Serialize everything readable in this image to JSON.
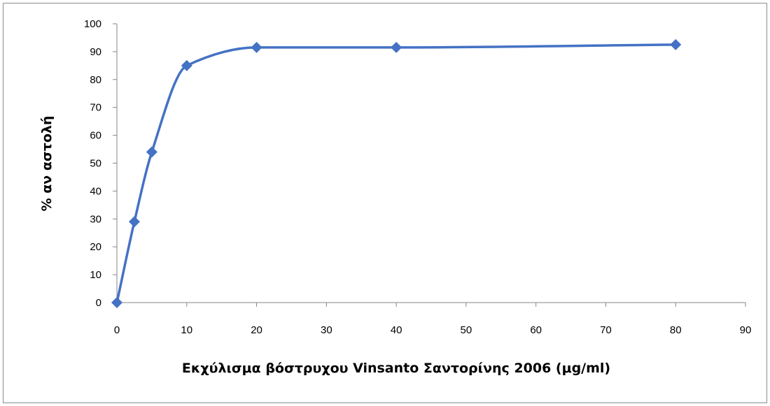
{
  "chart_data": {
    "type": "line",
    "title": "",
    "xlabel": "Εκχύλισμα βόστρυχου Vinsanto Σαντορίνης 2006 (μg/ml)",
    "ylabel": "% αν αστολή",
    "xlim": [
      0,
      90
    ],
    "ylim": [
      0,
      100
    ],
    "x_ticks": [
      "0",
      "10",
      "20",
      "30",
      "40",
      "50",
      "60",
      "70",
      "80",
      "90"
    ],
    "y_ticks": [
      "0",
      "10",
      "20",
      "30",
      "40",
      "50",
      "60",
      "70",
      "80",
      "90",
      "100"
    ],
    "grid": false,
    "legend": "none",
    "smooth": true,
    "marker": "diamond",
    "color": "#4472c4",
    "series": [
      {
        "x": [
          0,
          2.5,
          5,
          10,
          20,
          40,
          80
        ],
        "y": [
          0,
          29,
          54,
          85,
          91.5,
          91.5,
          92.5
        ]
      }
    ]
  }
}
